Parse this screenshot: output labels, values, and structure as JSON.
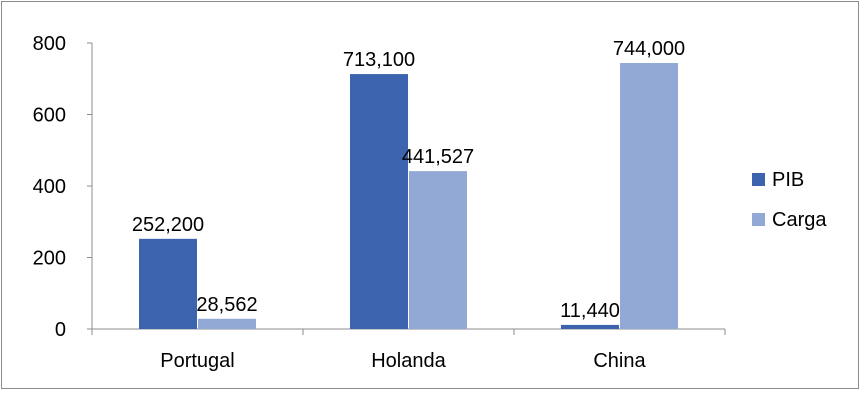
{
  "chart_data": {
    "type": "bar",
    "categories": [
      "Portugal",
      "Holanda",
      "China"
    ],
    "series": [
      {
        "name": "PIB",
        "color": "#3c63ad",
        "values": [
          252.2,
          713.1,
          11.44
        ],
        "data_labels": [
          "252,200",
          "713,100",
          "11,440"
        ]
      },
      {
        "name": "Carga",
        "color": "#92a9d6",
        "values": [
          28.562,
          441.527,
          744.0
        ],
        "data_labels": [
          "28,562",
          "441,527",
          "744,000"
        ]
      }
    ],
    "ylim": [
      0,
      800
    ],
    "yticks": [
      0,
      200,
      400,
      600,
      800
    ],
    "ytick_labels": [
      "0",
      "200",
      "400",
      "600",
      "800"
    ],
    "grid": false,
    "legend_position": "right",
    "title": "",
    "xlabel": "",
    "ylabel": ""
  }
}
